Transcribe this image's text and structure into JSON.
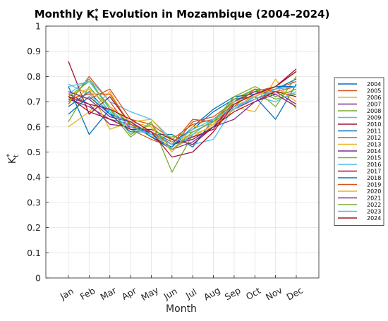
{
  "chart_data": {
    "type": "line",
    "title": {
      "prefix": "Monthly K",
      "sup": "*",
      "sub": "t",
      "suffix": " Evolution in Mozambique (2004–2024)"
    },
    "xlabel": "Month",
    "ylabel": {
      "main": "K",
      "sup": "*",
      "sub": "t"
    },
    "categories": [
      "Jan",
      "Feb",
      "Mar",
      "Apr",
      "May",
      "Jun",
      "Jul",
      "Aug",
      "Sep",
      "Oct",
      "Nov",
      "Dec"
    ],
    "yticks": [
      "0",
      "0.1",
      "0.2",
      "0.3",
      "0.4",
      "0.5",
      "0.6",
      "0.7",
      "0.8",
      "0.9",
      "1"
    ],
    "ylim": [
      0,
      1
    ],
    "grid": true,
    "legend_position": "right",
    "series": [
      {
        "name": "2004",
        "color": "#0072BD",
        "values": [
          0.76,
          0.57,
          0.67,
          0.6,
          0.57,
          0.57,
          0.52,
          0.63,
          0.69,
          0.73,
          0.75,
          0.79
        ]
      },
      {
        "name": "2005",
        "color": "#D95319",
        "values": [
          0.69,
          0.8,
          0.7,
          0.59,
          0.55,
          0.52,
          0.62,
          0.64,
          0.7,
          0.74,
          0.76,
          0.82
        ]
      },
      {
        "name": "2006",
        "color": "#EDB120",
        "values": [
          0.6,
          0.66,
          0.74,
          0.6,
          0.58,
          0.51,
          0.56,
          0.61,
          0.68,
          0.66,
          0.79,
          0.67
        ]
      },
      {
        "name": "2007",
        "color": "#7E2F8E",
        "values": [
          0.71,
          0.68,
          0.63,
          0.61,
          0.56,
          0.51,
          0.54,
          0.6,
          0.67,
          0.71,
          0.74,
          0.69
        ]
      },
      {
        "name": "2008",
        "color": "#77AC30",
        "values": [
          0.62,
          0.76,
          0.66,
          0.56,
          0.62,
          0.42,
          0.57,
          0.63,
          0.7,
          0.75,
          0.68,
          0.8
        ]
      },
      {
        "name": "2009",
        "color": "#4DBEEE",
        "values": [
          0.73,
          0.79,
          0.7,
          0.66,
          0.63,
          0.55,
          0.53,
          0.55,
          0.68,
          0.72,
          0.76,
          0.76
        ]
      },
      {
        "name": "2010",
        "color": "#A2142F",
        "values": [
          0.86,
          0.65,
          0.72,
          0.61,
          0.58,
          0.53,
          0.56,
          0.59,
          0.7,
          0.72,
          0.76,
          0.82
        ]
      },
      {
        "name": "2011",
        "color": "#0072BD",
        "values": [
          0.68,
          0.74,
          0.65,
          0.58,
          0.58,
          0.54,
          0.59,
          0.66,
          0.71,
          0.72,
          0.63,
          0.77
        ]
      },
      {
        "name": "2012",
        "color": "#D95319",
        "values": [
          0.74,
          0.71,
          0.75,
          0.63,
          0.61,
          0.55,
          0.61,
          0.63,
          0.69,
          0.73,
          0.75,
          0.78
        ]
      },
      {
        "name": "2013",
        "color": "#EDB120",
        "values": [
          0.7,
          0.75,
          0.59,
          0.62,
          0.63,
          0.54,
          0.57,
          0.6,
          0.67,
          0.73,
          0.74,
          0.73
        ]
      },
      {
        "name": "2014",
        "color": "#7E2F8E",
        "values": [
          0.73,
          0.69,
          0.61,
          0.6,
          0.58,
          0.53,
          0.55,
          0.6,
          0.7,
          0.74,
          0.73,
          0.68
        ]
      },
      {
        "name": "2015",
        "color": "#77AC30",
        "values": [
          0.72,
          0.78,
          0.68,
          0.61,
          0.56,
          0.56,
          0.58,
          0.62,
          0.71,
          0.75,
          0.71,
          0.73
        ]
      },
      {
        "name": "2016",
        "color": "#4DBEEE",
        "values": [
          0.77,
          0.73,
          0.66,
          0.59,
          0.57,
          0.51,
          0.57,
          0.63,
          0.67,
          0.72,
          0.7,
          0.74
        ]
      },
      {
        "name": "2017",
        "color": "#A2142F",
        "values": [
          0.72,
          0.66,
          0.63,
          0.59,
          0.59,
          0.55,
          0.53,
          0.6,
          0.66,
          0.7,
          0.74,
          0.72
        ]
      },
      {
        "name": "2018",
        "color": "#0072BD",
        "values": [
          0.65,
          0.72,
          0.65,
          0.62,
          0.56,
          0.52,
          0.6,
          0.67,
          0.72,
          0.73,
          0.76,
          0.76
        ]
      },
      {
        "name": "2019",
        "color": "#D95319",
        "values": [
          0.71,
          0.73,
          0.73,
          0.61,
          0.58,
          0.53,
          0.63,
          0.62,
          0.68,
          0.75,
          0.74,
          0.76
        ]
      },
      {
        "name": "2020",
        "color": "#EDB120",
        "values": [
          0.73,
          0.75,
          0.68,
          0.62,
          0.6,
          0.5,
          0.6,
          0.61,
          0.7,
          0.72,
          0.76,
          0.7
        ]
      },
      {
        "name": "2021",
        "color": "#7E2F8E",
        "values": [
          0.74,
          0.71,
          0.64,
          0.62,
          0.57,
          0.53,
          0.55,
          0.6,
          0.63,
          0.7,
          0.73,
          0.68
        ]
      },
      {
        "name": "2022",
        "color": "#77AC30",
        "values": [
          0.7,
          0.79,
          0.67,
          0.57,
          0.61,
          0.51,
          0.58,
          0.62,
          0.72,
          0.76,
          0.72,
          0.75
        ]
      },
      {
        "name": "2023",
        "color": "#4DBEEE",
        "values": [
          0.76,
          0.78,
          0.67,
          0.6,
          0.57,
          0.53,
          0.59,
          0.63,
          0.68,
          0.71,
          0.75,
          0.76
        ]
      },
      {
        "name": "2024",
        "color": "#A2142F",
        "values": [
          0.72,
          0.69,
          0.67,
          0.63,
          0.58,
          0.48,
          0.5,
          0.58,
          0.69,
          0.73,
          0.76,
          0.83
        ]
      }
    ]
  }
}
